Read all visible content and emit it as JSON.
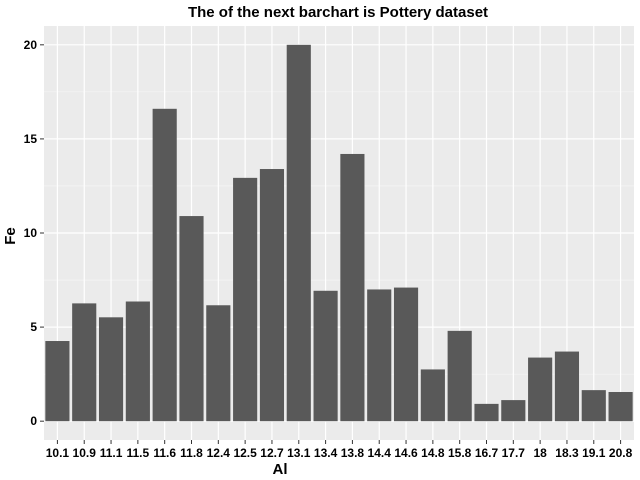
{
  "chart_data": {
    "type": "bar",
    "title": "The of the next barchart is Pottery dataset",
    "xlabel": "Al",
    "ylabel": "Fe",
    "categories": [
      "10.1",
      "10.9",
      "11.1",
      "11.5",
      "11.6",
      "11.8",
      "12.4",
      "12.5",
      "12.7",
      "13.1",
      "13.4",
      "13.8",
      "14.4",
      "14.6",
      "14.8",
      "15.8",
      "16.7",
      "17.7",
      "18",
      "18.3",
      "19.1",
      "20.8"
    ],
    "values": [
      4.26,
      6.26,
      5.52,
      6.36,
      16.6,
      10.9,
      6.16,
      12.93,
      13.4,
      20.0,
      6.93,
      14.2,
      7.0,
      7.1,
      2.75,
      4.8,
      0.92,
      1.12,
      3.38,
      3.7,
      1.65,
      1.55
    ],
    "y_ticks": [
      0,
      5,
      10,
      15,
      20
    ],
    "ylim": [
      -1,
      21
    ],
    "grid": true,
    "colors": {
      "panel": "#ebebeb",
      "grid_major": "#ffffff",
      "bar": "#595959"
    }
  }
}
